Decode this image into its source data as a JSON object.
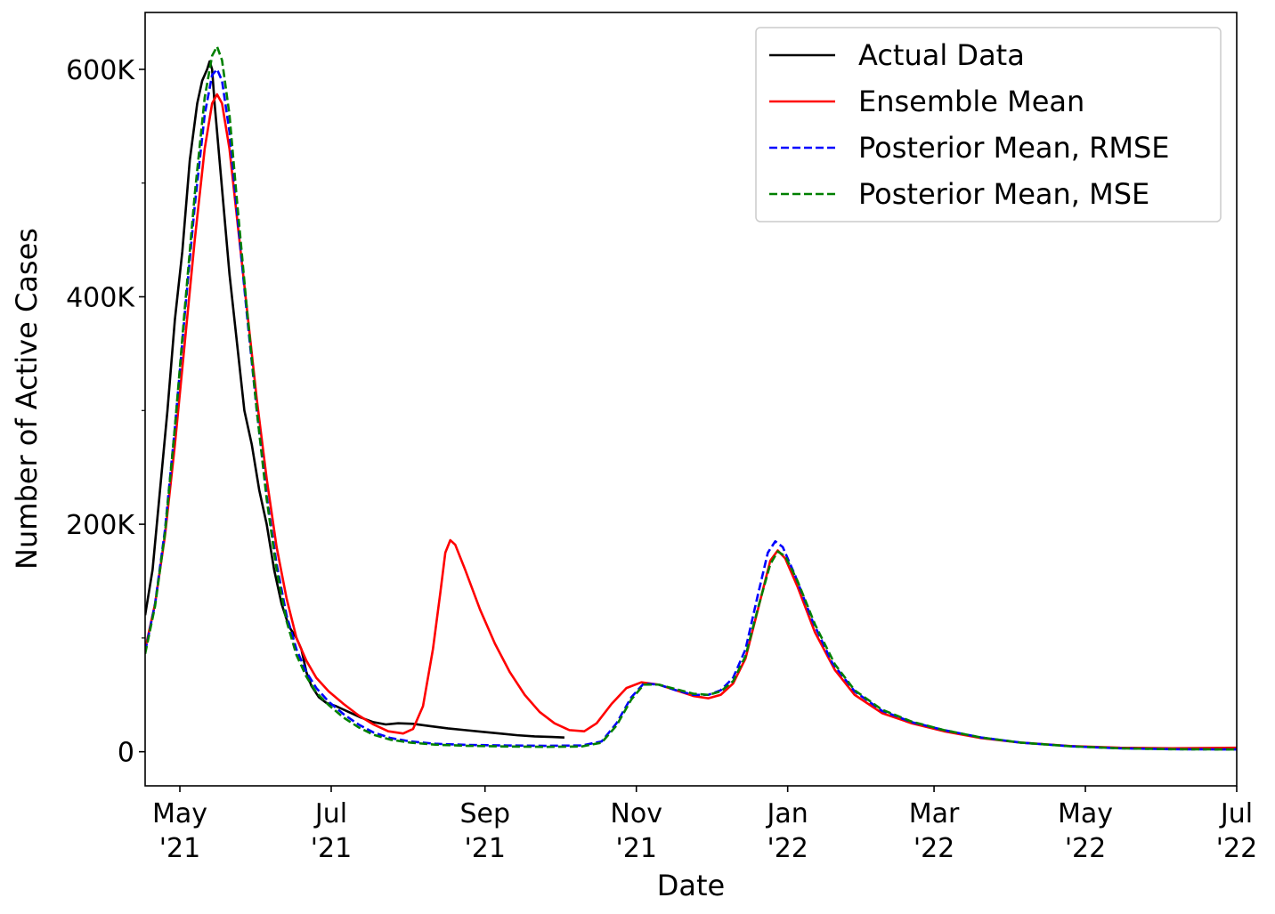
{
  "chart_data": {
    "type": "line",
    "title": "",
    "xlabel": "Date",
    "ylabel": "Number of Active Cases",
    "xlim": [
      "2021-04-17",
      "2022-07-01"
    ],
    "ylim": [
      -30000,
      650000
    ],
    "grid": false,
    "legend_position": "top-right",
    "x_ticks": [
      {
        "date": "2021-05-01",
        "line1": "May",
        "line2": "'21"
      },
      {
        "date": "2021-07-01",
        "line1": "Jul",
        "line2": "'21"
      },
      {
        "date": "2021-09-01",
        "line1": "Sep",
        "line2": "'21"
      },
      {
        "date": "2021-11-01",
        "line1": "Nov",
        "line2": "'21"
      },
      {
        "date": "2022-01-01",
        "line1": "Jan",
        "line2": "'22"
      },
      {
        "date": "2022-03-01",
        "line1": "Mar",
        "line2": "'22"
      },
      {
        "date": "2022-05-01",
        "line1": "May",
        "line2": "'22"
      },
      {
        "date": "2022-07-01",
        "line1": "Jul",
        "line2": "'22"
      }
    ],
    "y_ticks": [
      {
        "value": 0,
        "label": "0"
      },
      {
        "value": 200000,
        "label": "200K"
      },
      {
        "value": 400000,
        "label": "400K"
      },
      {
        "value": 600000,
        "label": "600K"
      }
    ],
    "y_minor_ticks": [
      100000,
      300000,
      500000
    ],
    "series": [
      {
        "name": "Actual Data",
        "color": "#000000",
        "dash": "solid",
        "points": [
          [
            "2021-04-17",
            120000
          ],
          [
            "2021-04-20",
            160000
          ],
          [
            "2021-04-23",
            230000
          ],
          [
            "2021-04-26",
            300000
          ],
          [
            "2021-04-29",
            380000
          ],
          [
            "2021-05-02",
            440000
          ],
          [
            "2021-05-05",
            520000
          ],
          [
            "2021-05-08",
            570000
          ],
          [
            "2021-05-10",
            590000
          ],
          [
            "2021-05-12",
            600000
          ],
          [
            "2021-05-13",
            607000
          ],
          [
            "2021-05-14",
            600000
          ],
          [
            "2021-05-15",
            570000
          ],
          [
            "2021-05-17",
            520000
          ],
          [
            "2021-05-19",
            470000
          ],
          [
            "2021-05-21",
            420000
          ],
          [
            "2021-05-24",
            360000
          ],
          [
            "2021-05-27",
            300000
          ],
          [
            "2021-05-30",
            270000
          ],
          [
            "2021-06-02",
            230000
          ],
          [
            "2021-06-05",
            200000
          ],
          [
            "2021-06-08",
            160000
          ],
          [
            "2021-06-11",
            130000
          ],
          [
            "2021-06-14",
            110000
          ],
          [
            "2021-06-17",
            100000
          ],
          [
            "2021-06-19",
            90000
          ],
          [
            "2021-06-21",
            70000
          ],
          [
            "2021-06-23",
            58000
          ],
          [
            "2021-06-26",
            48000
          ],
          [
            "2021-06-29",
            43000
          ],
          [
            "2021-07-03",
            40000
          ],
          [
            "2021-07-08",
            35000
          ],
          [
            "2021-07-13",
            30000
          ],
          [
            "2021-07-18",
            26000
          ],
          [
            "2021-07-23",
            24000
          ],
          [
            "2021-07-28",
            25000
          ],
          [
            "2021-08-03",
            24500
          ],
          [
            "2021-08-10",
            22500
          ],
          [
            "2021-08-17",
            20500
          ],
          [
            "2021-08-24",
            19000
          ],
          [
            "2021-08-31",
            17500
          ],
          [
            "2021-09-07",
            16000
          ],
          [
            "2021-09-14",
            14500
          ],
          [
            "2021-09-21",
            13500
          ],
          [
            "2021-09-28",
            13000
          ],
          [
            "2021-10-03",
            12500
          ]
        ]
      },
      {
        "name": "Ensemble Mean",
        "color": "#ff0000",
        "dash": "solid",
        "points": [
          [
            "2021-04-17",
            90000
          ],
          [
            "2021-04-21",
            130000
          ],
          [
            "2021-04-25",
            190000
          ],
          [
            "2021-04-29",
            270000
          ],
          [
            "2021-05-03",
            360000
          ],
          [
            "2021-05-07",
            450000
          ],
          [
            "2021-05-11",
            530000
          ],
          [
            "2021-05-14",
            570000
          ],
          [
            "2021-05-16",
            578000
          ],
          [
            "2021-05-18",
            570000
          ],
          [
            "2021-05-21",
            530000
          ],
          [
            "2021-05-24",
            470000
          ],
          [
            "2021-05-28",
            390000
          ],
          [
            "2021-06-01",
            310000
          ],
          [
            "2021-06-05",
            240000
          ],
          [
            "2021-06-09",
            180000
          ],
          [
            "2021-06-13",
            135000
          ],
          [
            "2021-06-17",
            100000
          ],
          [
            "2021-06-21",
            80000
          ],
          [
            "2021-06-25",
            65000
          ],
          [
            "2021-06-30",
            53000
          ],
          [
            "2021-07-06",
            42000
          ],
          [
            "2021-07-12",
            32000
          ],
          [
            "2021-07-18",
            24000
          ],
          [
            "2021-07-24",
            18000
          ],
          [
            "2021-07-30",
            16000
          ],
          [
            "2021-08-03",
            20000
          ],
          [
            "2021-08-07",
            40000
          ],
          [
            "2021-08-11",
            90000
          ],
          [
            "2021-08-14",
            140000
          ],
          [
            "2021-08-16",
            175000
          ],
          [
            "2021-08-18",
            186000
          ],
          [
            "2021-08-20",
            182000
          ],
          [
            "2021-08-24",
            160000
          ],
          [
            "2021-08-30",
            125000
          ],
          [
            "2021-09-05",
            95000
          ],
          [
            "2021-09-11",
            70000
          ],
          [
            "2021-09-17",
            50000
          ],
          [
            "2021-09-23",
            35000
          ],
          [
            "2021-09-29",
            25000
          ],
          [
            "2021-10-05",
            19000
          ],
          [
            "2021-10-11",
            18000
          ],
          [
            "2021-10-16",
            25000
          ],
          [
            "2021-10-22",
            42000
          ],
          [
            "2021-10-28",
            56000
          ],
          [
            "2021-11-03",
            61000
          ],
          [
            "2021-11-10",
            59000
          ],
          [
            "2021-11-17",
            54000
          ],
          [
            "2021-11-24",
            49000
          ],
          [
            "2021-11-30",
            47000
          ],
          [
            "2021-12-05",
            50000
          ],
          [
            "2021-12-10",
            60000
          ],
          [
            "2021-12-15",
            82000
          ],
          [
            "2021-12-20",
            125000
          ],
          [
            "2021-12-25",
            168000
          ],
          [
            "2021-12-28",
            177000
          ],
          [
            "2021-12-31",
            170000
          ],
          [
            "2022-01-05",
            145000
          ],
          [
            "2022-01-12",
            105000
          ],
          [
            "2022-01-20",
            72000
          ],
          [
            "2022-01-28",
            50000
          ],
          [
            "2022-02-08",
            34000
          ],
          [
            "2022-02-20",
            25000
          ],
          [
            "2022-03-05",
            18000
          ],
          [
            "2022-03-20",
            12000
          ],
          [
            "2022-04-05",
            8000
          ],
          [
            "2022-04-25",
            5000
          ],
          [
            "2022-05-15",
            3500
          ],
          [
            "2022-06-05",
            3000
          ],
          [
            "2022-07-01",
            3500
          ]
        ]
      },
      {
        "name": "Posterior Mean, RMSE",
        "color": "#0000ff",
        "dash": "dashed",
        "points": [
          [
            "2021-04-17",
            88000
          ],
          [
            "2021-04-21",
            130000
          ],
          [
            "2021-04-25",
            195000
          ],
          [
            "2021-04-29",
            285000
          ],
          [
            "2021-05-03",
            385000
          ],
          [
            "2021-05-07",
            480000
          ],
          [
            "2021-05-11",
            560000
          ],
          [
            "2021-05-14",
            595000
          ],
          [
            "2021-05-16",
            600000
          ],
          [
            "2021-05-18",
            590000
          ],
          [
            "2021-05-21",
            545000
          ],
          [
            "2021-05-24",
            475000
          ],
          [
            "2021-05-28",
            385000
          ],
          [
            "2021-06-01",
            300000
          ],
          [
            "2021-06-05",
            225000
          ],
          [
            "2021-06-09",
            165000
          ],
          [
            "2021-06-13",
            120000
          ],
          [
            "2021-06-17",
            90000
          ],
          [
            "2021-06-21",
            70000
          ],
          [
            "2021-06-25",
            56000
          ],
          [
            "2021-06-30",
            44000
          ],
          [
            "2021-07-06",
            33000
          ],
          [
            "2021-07-12",
            24000
          ],
          [
            "2021-07-18",
            17000
          ],
          [
            "2021-07-25",
            12000
          ],
          [
            "2021-08-02",
            9000
          ],
          [
            "2021-08-12",
            7000
          ],
          [
            "2021-08-25",
            6000
          ],
          [
            "2021-09-10",
            5500
          ],
          [
            "2021-09-25",
            5200
          ],
          [
            "2021-10-10",
            5500
          ],
          [
            "2021-10-18",
            9000
          ],
          [
            "2021-10-24",
            25000
          ],
          [
            "2021-10-30",
            48000
          ],
          [
            "2021-11-04",
            60000
          ],
          [
            "2021-11-10",
            59000
          ],
          [
            "2021-11-17",
            54000
          ],
          [
            "2021-11-24",
            50000
          ],
          [
            "2021-11-30",
            50000
          ],
          [
            "2021-12-05",
            54000
          ],
          [
            "2021-12-10",
            65000
          ],
          [
            "2021-12-15",
            90000
          ],
          [
            "2021-12-20",
            138000
          ],
          [
            "2021-12-24",
            175000
          ],
          [
            "2021-12-27",
            185000
          ],
          [
            "2021-12-30",
            180000
          ],
          [
            "2022-01-04",
            155000
          ],
          [
            "2022-01-11",
            115000
          ],
          [
            "2022-01-19",
            78000
          ],
          [
            "2022-01-28",
            53000
          ],
          [
            "2022-02-08",
            36000
          ],
          [
            "2022-02-20",
            26000
          ],
          [
            "2022-03-05",
            19000
          ],
          [
            "2022-03-20",
            12500
          ],
          [
            "2022-04-05",
            8000
          ],
          [
            "2022-04-25",
            4800
          ],
          [
            "2022-05-15",
            3000
          ],
          [
            "2022-06-05",
            2200
          ],
          [
            "2022-07-01",
            2000
          ]
        ]
      },
      {
        "name": "Posterior Mean, MSE",
        "color": "#008000",
        "dash": "dashed",
        "points": [
          [
            "2021-04-17",
            86000
          ],
          [
            "2021-04-21",
            128000
          ],
          [
            "2021-04-25",
            192000
          ],
          [
            "2021-04-29",
            285000
          ],
          [
            "2021-05-03",
            390000
          ],
          [
            "2021-05-07",
            490000
          ],
          [
            "2021-05-11",
            575000
          ],
          [
            "2021-05-14",
            612000
          ],
          [
            "2021-05-16",
            620000
          ],
          [
            "2021-05-18",
            608000
          ],
          [
            "2021-05-21",
            560000
          ],
          [
            "2021-05-24",
            485000
          ],
          [
            "2021-05-28",
            390000
          ],
          [
            "2021-06-01",
            300000
          ],
          [
            "2021-06-05",
            222000
          ],
          [
            "2021-06-09",
            160000
          ],
          [
            "2021-06-13",
            115000
          ],
          [
            "2021-06-17",
            85000
          ],
          [
            "2021-06-21",
            66000
          ],
          [
            "2021-06-25",
            52000
          ],
          [
            "2021-06-30",
            41000
          ],
          [
            "2021-07-06",
            30000
          ],
          [
            "2021-07-12",
            21500
          ],
          [
            "2021-07-18",
            15000
          ],
          [
            "2021-07-25",
            10500
          ],
          [
            "2021-08-02",
            8000
          ],
          [
            "2021-08-12",
            6200
          ],
          [
            "2021-08-25",
            5200
          ],
          [
            "2021-09-10",
            4600
          ],
          [
            "2021-09-25",
            4300
          ],
          [
            "2021-10-10",
            4600
          ],
          [
            "2021-10-18",
            8000
          ],
          [
            "2021-10-24",
            23000
          ],
          [
            "2021-10-30",
            46000
          ],
          [
            "2021-11-04",
            59000
          ],
          [
            "2021-11-10",
            59000
          ],
          [
            "2021-11-17",
            55000
          ],
          [
            "2021-11-24",
            51000
          ],
          [
            "2021-11-30",
            50000
          ],
          [
            "2021-12-05",
            53000
          ],
          [
            "2021-12-10",
            62000
          ],
          [
            "2021-12-15",
            84000
          ],
          [
            "2021-12-20",
            126000
          ],
          [
            "2021-12-25",
            165000
          ],
          [
            "2021-12-28",
            176000
          ],
          [
            "2021-12-31",
            172000
          ],
          [
            "2022-01-05",
            150000
          ],
          [
            "2022-01-12",
            112000
          ],
          [
            "2022-01-20",
            77000
          ],
          [
            "2022-01-28",
            54000
          ],
          [
            "2022-02-08",
            37000
          ],
          [
            "2022-02-20",
            26500
          ],
          [
            "2022-03-05",
            19000
          ],
          [
            "2022-03-20",
            12500
          ],
          [
            "2022-04-05",
            8000
          ],
          [
            "2022-04-25",
            4800
          ],
          [
            "2022-05-15",
            3000
          ],
          [
            "2022-06-05",
            2200
          ],
          [
            "2022-07-01",
            2000
          ]
        ]
      }
    ]
  }
}
